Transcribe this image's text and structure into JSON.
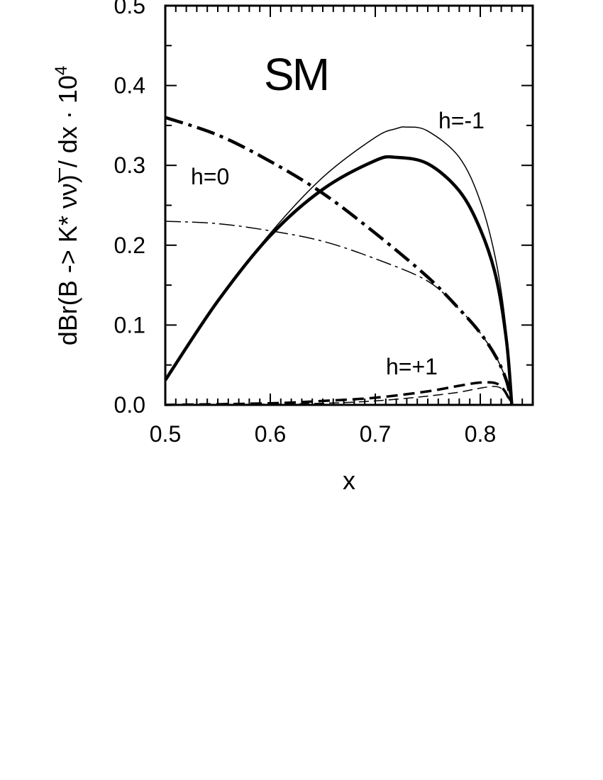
{
  "chart_data": {
    "type": "line",
    "xlabel": "x",
    "ylabel_parts": {
      "main": "dBr(B  ->  K*  ",
      "nu1": "ν",
      "nu2": "ν",
      "close": ")  /  dx  ·  10",
      "exp": "4"
    },
    "xlim": [
      0.5,
      0.85
    ],
    "ylim": [
      0.0,
      0.5
    ],
    "x_ticks": [
      "0.5",
      "0.6",
      "0.7",
      "0.8"
    ],
    "y_ticks": [
      "0.0",
      "0.1",
      "0.2",
      "0.3",
      "0.4",
      "0.5"
    ],
    "grid": false,
    "annotations": {
      "model": "SM",
      "h_minus": "h=-1",
      "h_zero": "h=0",
      "h_plus": "h=+1"
    },
    "series": [
      {
        "id": "h_minus_thick",
        "style": "solid-thick",
        "x": [
          0.5,
          0.55,
          0.6,
          0.65,
          0.7,
          0.72,
          0.75,
          0.78,
          0.8,
          0.815,
          0.825,
          0.83
        ],
        "y": [
          0.031,
          0.13,
          0.212,
          0.27,
          0.306,
          0.31,
          0.302,
          0.268,
          0.22,
          0.16,
          0.08,
          0.0
        ]
      },
      {
        "id": "h_minus_thin",
        "style": "solid-thin",
        "x": [
          0.5,
          0.55,
          0.6,
          0.65,
          0.7,
          0.72,
          0.73,
          0.75,
          0.78,
          0.8,
          0.815,
          0.825,
          0.83
        ],
        "y": [
          0.03,
          0.13,
          0.215,
          0.285,
          0.335,
          0.346,
          0.348,
          0.343,
          0.31,
          0.255,
          0.18,
          0.09,
          0.0
        ]
      },
      {
        "id": "h_zero_thick",
        "style": "dashdot-thick",
        "x": [
          0.5,
          0.55,
          0.6,
          0.65,
          0.7,
          0.75,
          0.78,
          0.8,
          0.815,
          0.825,
          0.83
        ],
        "y": [
          0.36,
          0.338,
          0.305,
          0.265,
          0.215,
          0.16,
          0.12,
          0.09,
          0.06,
          0.03,
          0.0
        ]
      },
      {
        "id": "h_zero_thin",
        "style": "dashdot-thin",
        "x": [
          0.5,
          0.55,
          0.6,
          0.65,
          0.7,
          0.75,
          0.78,
          0.8,
          0.815,
          0.825,
          0.83
        ],
        "y": [
          0.23,
          0.227,
          0.218,
          0.205,
          0.183,
          0.155,
          0.12,
          0.09,
          0.06,
          0.03,
          0.0
        ]
      },
      {
        "id": "h_plus_thick",
        "style": "dashed-thick",
        "x": [
          0.5,
          0.6,
          0.65,
          0.7,
          0.75,
          0.78,
          0.8,
          0.815,
          0.823,
          0.83
        ],
        "y": [
          0.0,
          0.002,
          0.005,
          0.009,
          0.017,
          0.024,
          0.028,
          0.027,
          0.018,
          0.0
        ]
      },
      {
        "id": "h_plus_thin",
        "style": "dashed-thin",
        "x": [
          0.5,
          0.6,
          0.65,
          0.7,
          0.75,
          0.78,
          0.8,
          0.815,
          0.823,
          0.83
        ],
        "y": [
          0.0,
          0.001,
          0.002,
          0.005,
          0.011,
          0.016,
          0.021,
          0.023,
          0.017,
          0.0
        ]
      }
    ]
  }
}
